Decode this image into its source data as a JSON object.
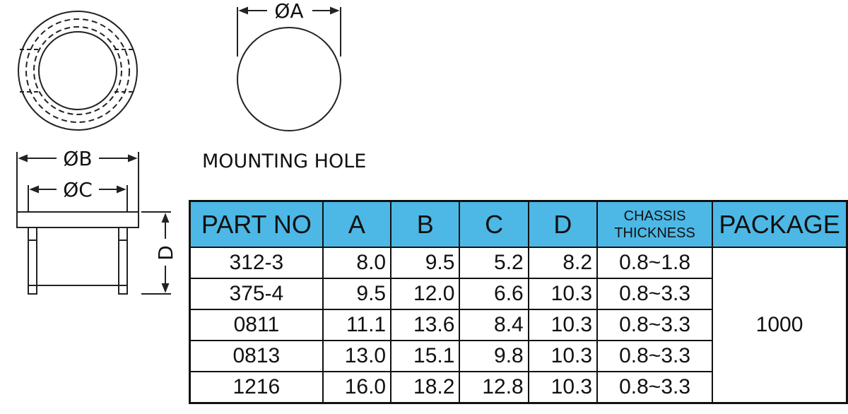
{
  "drawing": {
    "dim_a": "ØA",
    "dim_b": "ØB",
    "dim_c": "ØC",
    "dim_d": "D",
    "mounting_hole": "MOUNTING  HOLE"
  },
  "table": {
    "header": [
      "PART NO",
      "A",
      "B",
      "C",
      "D",
      "CHASSIS THICKNESS",
      "PACKAGE"
    ],
    "rows": [
      [
        "312-3",
        "8.0",
        "9.5",
        "5.2",
        "8.2",
        "0.8~1.8"
      ],
      [
        "375-4",
        "9.5",
        "12.0",
        "6.6",
        "10.3",
        "0.8~3.3"
      ],
      [
        "0811",
        "11.1",
        "13.6",
        "8.4",
        "10.3",
        "0.8~3.3"
      ],
      [
        "0813",
        "13.0",
        "15.1",
        "9.8",
        "10.3",
        "0.8~3.3"
      ],
      [
        "1216",
        "16.0",
        "18.2",
        "12.8",
        "10.3",
        "0.8~3.3"
      ]
    ],
    "package": "1000"
  }
}
